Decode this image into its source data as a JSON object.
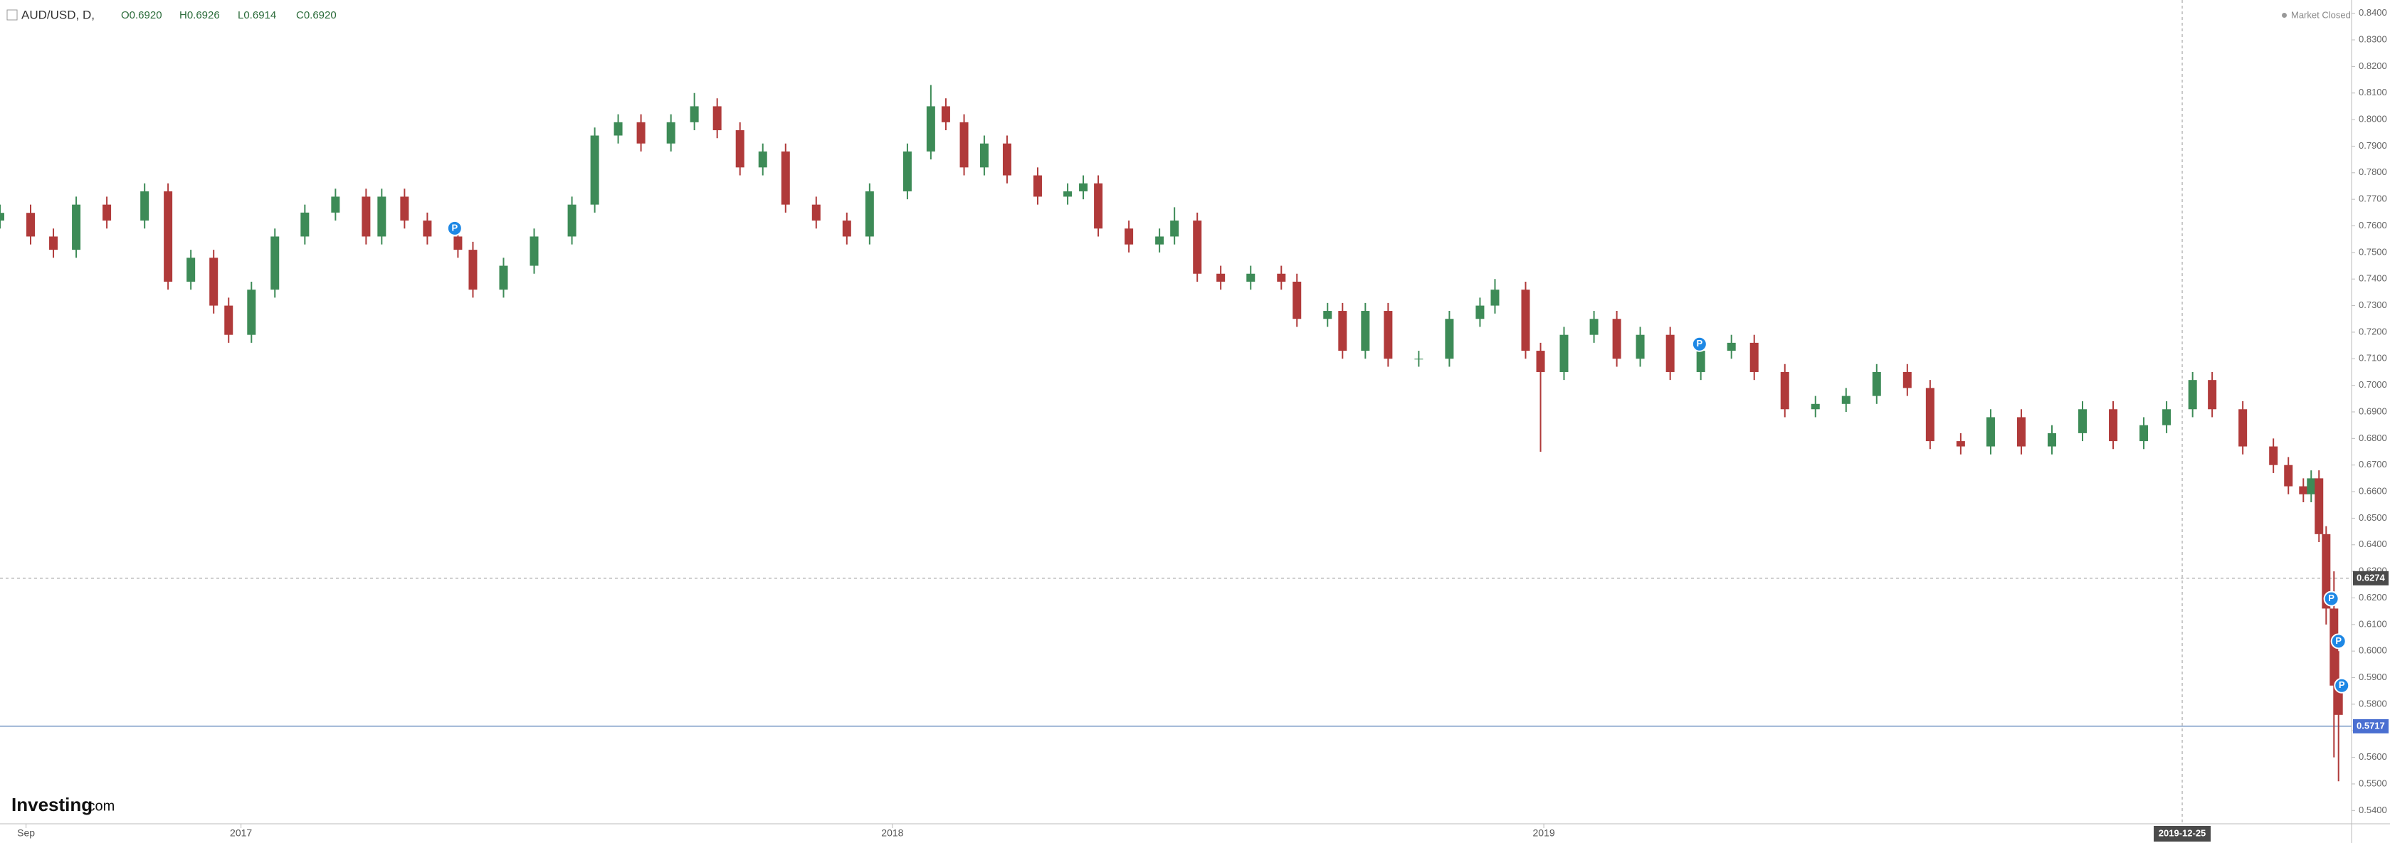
{
  "chart_data": {
    "type": "candlestick",
    "symbol": "AUD/USD, D,",
    "ohlc_legend": [
      "O0.6920",
      "H0.6926",
      "L0.6914",
      "C0.6920"
    ],
    "status": "Market Closed",
    "brand": "Investing",
    "brand_suffix": ".com",
    "up_color": "#3d8b57",
    "down_color": "#b03a3a",
    "xlim": [
      2016.63,
      2020.24
    ],
    "ylim": [
      0.535,
      0.845
    ],
    "xticks": [
      {
        "value": 2016.67,
        "label": "Sep"
      },
      2017,
      2018,
      2019
    ],
    "yticks": [
      {
        "value": 0.54,
        "label": "0.5400"
      },
      {
        "value": 0.55,
        "label": "0.5500"
      },
      {
        "value": 0.56,
        "label": "0.5600"
      },
      {
        "value": 0.57,
        "label": "0.5700"
      },
      {
        "value": 0.58,
        "label": "0.5800"
      },
      {
        "value": 0.59,
        "label": "0.5900"
      },
      {
        "value": 0.6,
        "label": "0.6000"
      },
      {
        "value": 0.61,
        "label": "0.6100"
      },
      {
        "value": 0.62,
        "label": "0.6200"
      },
      {
        "value": 0.63,
        "label": "0.6300"
      },
      {
        "value": 0.64,
        "label": "0.6400"
      },
      {
        "value": 0.65,
        "label": "0.6500"
      },
      {
        "value": 0.66,
        "label": "0.6600"
      },
      {
        "value": 0.67,
        "label": "0.6700"
      },
      {
        "value": 0.68,
        "label": "0.6800"
      },
      {
        "value": 0.69,
        "label": "0.6900"
      },
      {
        "value": 0.7,
        "label": "0.7000"
      },
      {
        "value": 0.71,
        "label": "0.7100"
      },
      {
        "value": 0.72,
        "label": "0.7200"
      },
      {
        "value": 0.73,
        "label": "0.7300"
      },
      {
        "value": 0.74,
        "label": "0.7400"
      },
      {
        "value": 0.75,
        "label": "0.7500"
      },
      {
        "value": 0.76,
        "label": "0.7600"
      },
      {
        "value": 0.77,
        "label": "0.7700"
      },
      {
        "value": 0.78,
        "label": "0.7800"
      },
      {
        "value": 0.79,
        "label": "0.7900"
      },
      {
        "value": 0.8,
        "label": "0.8000"
      },
      {
        "value": 0.81,
        "label": "0.8100"
      },
      {
        "value": 0.82,
        "label": "0.8200"
      },
      {
        "value": 0.83,
        "label": "0.8300"
      },
      {
        "value": 0.84,
        "label": "0.8400"
      }
    ],
    "crosshair": {
      "x": {
        "value": 2019.98,
        "label": "2019-12-25"
      },
      "y": 0.6274
    },
    "last_price": 0.5717,
    "events": [
      {
        "label": "P",
        "x": 2017.328,
        "y": 0.7591
      },
      {
        "label": "P",
        "x": 2019.239,
        "y": 0.7155
      },
      {
        "label": "P",
        "x": 2020.209,
        "y": 0.6197
      },
      {
        "label": "P",
        "x": 2020.22,
        "y": 0.6037
      },
      {
        "label": "P",
        "x": 2020.225,
        "y": 0.587
      }
    ],
    "x": [
      2016.63,
      2016.677,
      2016.712,
      2016.747,
      2016.794,
      2016.852,
      2016.888,
      2016.923,
      2016.958,
      2016.981,
      2017.016,
      2017.052,
      2017.098,
      2017.145,
      2017.192,
      2017.216,
      2017.251,
      2017.286,
      2017.333,
      2017.356,
      2017.403,
      2017.45,
      2017.508,
      2017.543,
      2017.579,
      2017.614,
      2017.66,
      2017.696,
      2017.731,
      2017.766,
      2017.801,
      2017.836,
      2017.883,
      2017.93,
      2017.965,
      2018.023,
      2018.059,
      2018.082,
      2018.11,
      2018.141,
      2018.176,
      2018.223,
      2018.269,
      2018.293,
      2018.316,
      2018.363,
      2018.41,
      2018.433,
      2018.468,
      2018.504,
      2018.55,
      2018.597,
      2018.621,
      2018.668,
      2018.691,
      2018.726,
      2018.761,
      2018.808,
      2018.855,
      2018.902,
      2018.925,
      2018.972,
      2018.995,
      2019.031,
      2019.077,
      2019.112,
      2019.148,
      2019.194,
      2019.241,
      2019.288,
      2019.323,
      2019.37,
      2019.417,
      2019.464,
      2019.511,
      2019.558,
      2019.593,
      2019.64,
      2019.686,
      2019.733,
      2019.78,
      2019.827,
      2019.874,
      2019.921,
      2019.956,
      2019.996,
      2020.026,
      2020.073,
      2020.12,
      2020.143,
      2020.166,
      2020.178,
      2020.19,
      2020.201,
      2020.213,
      2020.22
    ],
    "open": [
      0.762,
      0.7649,
      0.756,
      0.751,
      0.768,
      0.762,
      0.773,
      0.739,
      0.748,
      0.73,
      0.719,
      0.736,
      0.756,
      0.765,
      0.771,
      0.756,
      0.771,
      0.762,
      0.756,
      0.751,
      0.736,
      0.745,
      0.756,
      0.768,
      0.794,
      0.799,
      0.791,
      0.799,
      0.805,
      0.796,
      0.782,
      0.788,
      0.768,
      0.762,
      0.756,
      0.773,
      0.788,
      0.805,
      0.799,
      0.782,
      0.791,
      0.779,
      0.771,
      0.773,
      0.776,
      0.759,
      0.753,
      0.756,
      0.762,
      0.742,
      0.739,
      0.742,
      0.739,
      0.725,
      0.728,
      0.713,
      0.728,
      0.71,
      0.71,
      0.725,
      0.73,
      0.736,
      0.713,
      0.705,
      0.719,
      0.725,
      0.71,
      0.719,
      0.705,
      0.713,
      0.716,
      0.705,
      0.691,
      0.693,
      0.696,
      0.705,
      0.699,
      0.679,
      0.677,
      0.688,
      0.677,
      0.682,
      0.691,
      0.679,
      0.685,
      0.691,
      0.702,
      0.691,
      0.677,
      0.67,
      0.662,
      0.659,
      0.665,
      0.644,
      0.616,
      0.587
    ],
    "high": [
      0.768,
      0.768,
      0.759,
      0.771,
      0.771,
      0.776,
      0.776,
      0.751,
      0.751,
      0.733,
      0.739,
      0.759,
      0.768,
      0.774,
      0.774,
      0.774,
      0.774,
      0.765,
      0.759,
      0.754,
      0.748,
      0.759,
      0.771,
      0.797,
      0.802,
      0.802,
      0.802,
      0.81,
      0.808,
      0.799,
      0.791,
      0.791,
      0.771,
      0.765,
      0.776,
      0.791,
      0.813,
      0.808,
      0.802,
      0.794,
      0.794,
      0.782,
      0.776,
      0.779,
      0.779,
      0.762,
      0.759,
      0.767,
      0.765,
      0.745,
      0.745,
      0.745,
      0.742,
      0.731,
      0.731,
      0.731,
      0.731,
      0.713,
      0.728,
      0.733,
      0.74,
      0.739,
      0.716,
      0.722,
      0.728,
      0.728,
      0.722,
      0.722,
      0.716,
      0.719,
      0.719,
      0.708,
      0.696,
      0.699,
      0.708,
      0.708,
      0.702,
      0.682,
      0.691,
      0.691,
      0.685,
      0.694,
      0.694,
      0.688,
      0.694,
      0.705,
      0.705,
      0.694,
      0.68,
      0.673,
      0.665,
      0.668,
      0.668,
      0.647,
      0.63,
      0.6
    ],
    "low": [
      0.759,
      0.753,
      0.748,
      0.748,
      0.759,
      0.759,
      0.736,
      0.736,
      0.727,
      0.716,
      0.716,
      0.733,
      0.753,
      0.762,
      0.753,
      0.753,
      0.759,
      0.753,
      0.748,
      0.733,
      0.733,
      0.742,
      0.753,
      0.765,
      0.791,
      0.788,
      0.788,
      0.796,
      0.793,
      0.779,
      0.779,
      0.765,
      0.759,
      0.753,
      0.753,
      0.77,
      0.785,
      0.796,
      0.779,
      0.779,
      0.776,
      0.768,
      0.768,
      0.77,
      0.756,
      0.75,
      0.75,
      0.753,
      0.739,
      0.736,
      0.736,
      0.736,
      0.722,
      0.722,
      0.71,
      0.71,
      0.707,
      0.707,
      0.707,
      0.722,
      0.727,
      0.71,
      0.675,
      0.702,
      0.716,
      0.707,
      0.707,
      0.702,
      0.702,
      0.71,
      0.702,
      0.688,
      0.688,
      0.69,
      0.693,
      0.696,
      0.676,
      0.674,
      0.674,
      0.674,
      0.674,
      0.679,
      0.676,
      0.676,
      0.682,
      0.688,
      0.688,
      0.674,
      0.667,
      0.659,
      0.656,
      0.656,
      0.641,
      0.61,
      0.56,
      0.551
    ],
    "close": [
      0.7649,
      0.756,
      0.751,
      0.768,
      0.762,
      0.773,
      0.739,
      0.748,
      0.73,
      0.719,
      0.736,
      0.756,
      0.765,
      0.771,
      0.756,
      0.771,
      0.762,
      0.756,
      0.751,
      0.736,
      0.745,
      0.756,
      0.768,
      0.794,
      0.799,
      0.791,
      0.799,
      0.805,
      0.796,
      0.782,
      0.788,
      0.768,
      0.762,
      0.756,
      0.773,
      0.788,
      0.805,
      0.799,
      0.782,
      0.791,
      0.779,
      0.771,
      0.773,
      0.776,
      0.759,
      0.753,
      0.756,
      0.762,
      0.742,
      0.739,
      0.742,
      0.739,
      0.725,
      0.728,
      0.713,
      0.728,
      0.71,
      0.71,
      0.725,
      0.73,
      0.736,
      0.713,
      0.705,
      0.719,
      0.725,
      0.71,
      0.719,
      0.705,
      0.713,
      0.716,
      0.705,
      0.691,
      0.693,
      0.696,
      0.705,
      0.699,
      0.679,
      0.677,
      0.688,
      0.677,
      0.682,
      0.691,
      0.679,
      0.685,
      0.691,
      0.702,
      0.691,
      0.677,
      0.67,
      0.662,
      0.659,
      0.665,
      0.644,
      0.616,
      0.587,
      0.576
    ]
  }
}
